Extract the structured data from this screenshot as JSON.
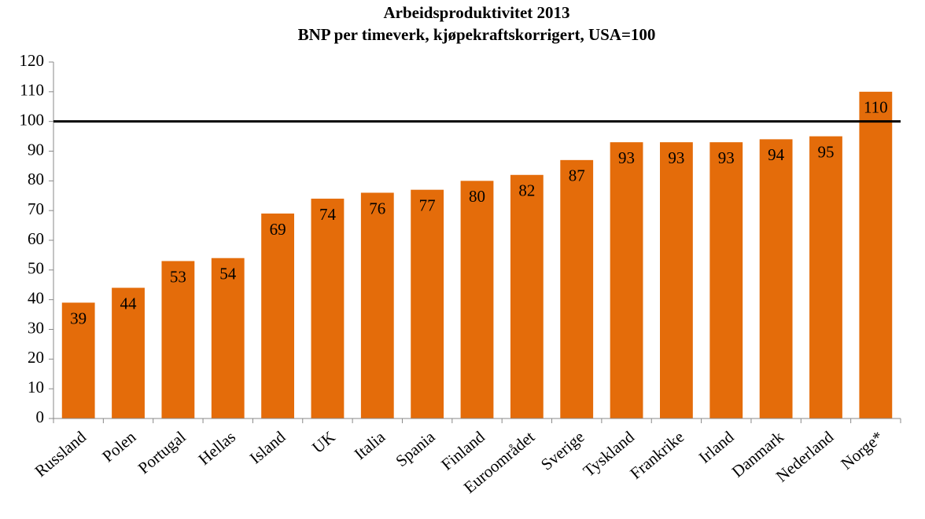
{
  "chart_data": {
    "type": "bar",
    "title": "Arbeidsproduktivitet 2013",
    "subtitle": "BNP per timeverk, kjøpekraftskorrigert, USA=100",
    "categories": [
      "Russland",
      "Polen",
      "Portugal",
      "Hellas",
      "Island",
      "UK",
      "Italia",
      "Spania",
      "Finland",
      "Euroområdet",
      "Sverige",
      "Tyskland",
      "Frankrike",
      "Irland",
      "Danmark",
      "Nederland",
      "Norge*"
    ],
    "values": [
      39,
      44,
      53,
      54,
      69,
      74,
      76,
      77,
      80,
      82,
      87,
      93,
      93,
      93,
      94,
      95,
      110
    ],
    "color": "#e46c0a",
    "reference_line": 100,
    "ylim": [
      0,
      120
    ],
    "yticks": [
      0,
      10,
      20,
      30,
      40,
      50,
      60,
      70,
      80,
      90,
      100,
      110,
      120
    ],
    "grid": false
  }
}
